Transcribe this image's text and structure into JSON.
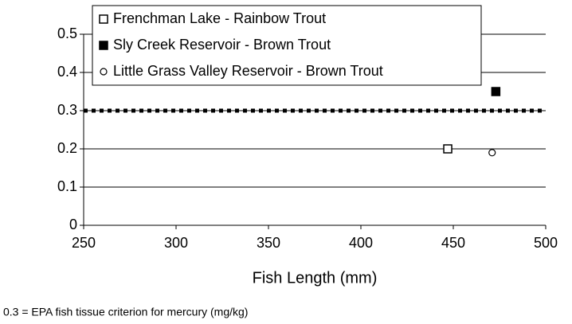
{
  "chart_data": {
    "type": "scatter",
    "xlabel": "Fish Length (mm)",
    "xlim": [
      250,
      500
    ],
    "xticks": [
      250,
      300,
      350,
      400,
      450,
      500
    ],
    "ylim": [
      0,
      0.5
    ],
    "yticks": [
      0,
      0.1,
      0.2,
      0.3,
      0.4,
      0.5
    ],
    "grid": true,
    "legend": "upper left",
    "reference_line": {
      "value": 0.3,
      "color": "#000000",
      "style": "dotted"
    },
    "series": [
      {
        "name": "Frenchman Lake - Rainbow Trout",
        "color": "#000000",
        "marker": "square-open",
        "x": [
          447
        ],
        "values": [
          0.2
        ]
      },
      {
        "name": "Sly Creek Reservoir - Brown Trout",
        "color": "#000000",
        "marker": "square-filled",
        "x": [
          473
        ],
        "values": [
          0.35
        ]
      },
      {
        "name": "Little Grass Valley Reservoir - Brown Trout",
        "color": "#000000",
        "marker": "circle-open",
        "x": [
          471
        ],
        "values": [
          0.19
        ]
      }
    ],
    "note": "0.3 = EPA fish tissue criterion for mercury (mg/kg)"
  }
}
